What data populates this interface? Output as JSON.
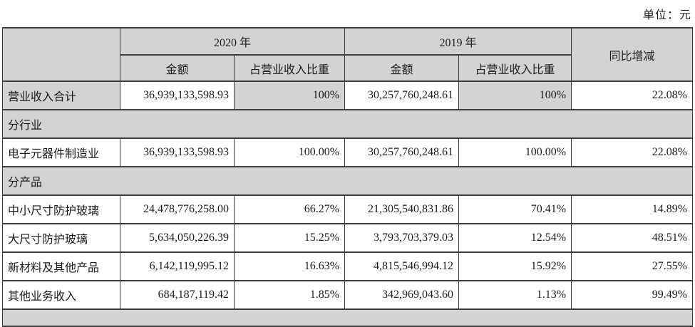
{
  "unit_label": "单位：元",
  "colors": {
    "shade_gray": "#d3d3d3",
    "border": "#3d3d3d",
    "text": "#1c1c1c",
    "background": "#ffffff"
  },
  "table": {
    "header": {
      "year_2020": "2020 年",
      "year_2019": "2019 年",
      "amount": "金额",
      "ratio": "占营业收入比重",
      "yoy": "同比增减"
    },
    "sections": {
      "industry": "分行业",
      "product": "分产品"
    },
    "rows": [
      {
        "label": "营业收入合计",
        "amount_2020": "36,939,133,598.93",
        "ratio_2020": "100%",
        "amount_2019": "30,257,760,248.61",
        "ratio_2019": "100%",
        "yoy": "22.08%"
      },
      {
        "label": "电子元器件制造业",
        "amount_2020": "36,939,133,598.93",
        "ratio_2020": "100.00%",
        "amount_2019": "30,257,760,248.61",
        "ratio_2019": "100.00%",
        "yoy": "22.08%"
      },
      {
        "label": "中小尺寸防护玻璃",
        "amount_2020": "24,478,776,258.00",
        "ratio_2020": "66.27%",
        "amount_2019": "21,305,540,831.86",
        "ratio_2019": "70.41%",
        "yoy": "14.89%"
      },
      {
        "label": "大尺寸防护玻璃",
        "amount_2020": "5,634,050,226.39",
        "ratio_2020": "15.25%",
        "amount_2019": "3,793,703,379.03",
        "ratio_2019": "12.54%",
        "yoy": "48.51%"
      },
      {
        "label": "新材料及其他产品",
        "amount_2020": "6,142,119,995.12",
        "ratio_2020": "16.63%",
        "amount_2019": "4,815,546,994.12",
        "ratio_2019": "15.92%",
        "yoy": "27.55%"
      },
      {
        "label": "其他业务收入",
        "amount_2020": "684,187,119.42",
        "ratio_2020": "1.85%",
        "amount_2019": "342,969,043.60",
        "ratio_2019": "1.13%",
        "yoy": "99.49%"
      }
    ]
  }
}
